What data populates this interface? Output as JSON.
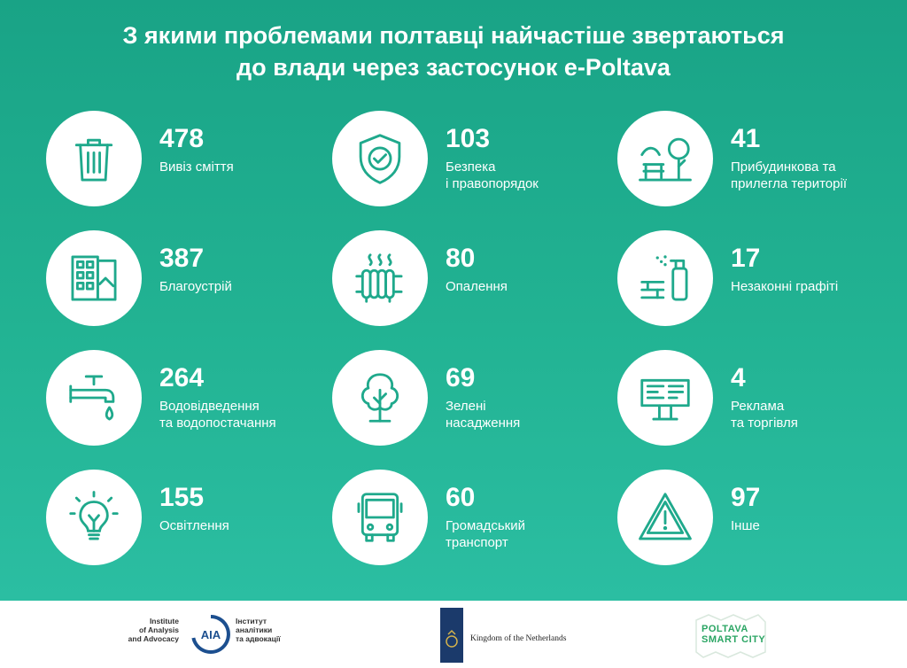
{
  "title": {
    "line1": "З якими проблемами полтавці найчастіше звертаються",
    "line2": "до влади через застосунок e-Poltava"
  },
  "colors": {
    "background": "#1fa98c",
    "icon": "#1fa98c",
    "text": "#ffffff"
  },
  "items": [
    {
      "icon": "trash-can-icon",
      "number": "478",
      "label1": "Вивіз сміття",
      "label2": ""
    },
    {
      "icon": "shield-check-icon",
      "number": "103",
      "label1": "Безпека",
      "label2": "і правопорядок"
    },
    {
      "icon": "park-bench-icon",
      "number": "41",
      "label1": "Прибудинкова та",
      "label2": "прилегла території"
    },
    {
      "icon": "building-icon",
      "number": "387",
      "label1": "Благоустрій",
      "label2": ""
    },
    {
      "icon": "radiator-icon",
      "number": "80",
      "label1": "Опалення",
      "label2": ""
    },
    {
      "icon": "spray-can-icon",
      "number": "17",
      "label1": "Незаконні графіті",
      "label2": ""
    },
    {
      "icon": "water-tap-icon",
      "number": "264",
      "label1": "Водовідведення",
      "label2": "та водопостачання"
    },
    {
      "icon": "tree-icon",
      "number": "69",
      "label1": "Зелені",
      "label2": "насадження"
    },
    {
      "icon": "billboard-icon",
      "number": "4",
      "label1": "Реклама",
      "label2": "та торгівля"
    },
    {
      "icon": "light-bulb-icon",
      "number": "155",
      "label1": "Освітлення",
      "label2": ""
    },
    {
      "icon": "bus-icon",
      "number": "60",
      "label1": "Громадський",
      "label2": "транспорт"
    },
    {
      "icon": "warning-triangle-icon",
      "number": "97",
      "label1": "Інше",
      "label2": ""
    }
  ],
  "footer": {
    "iaa_en": [
      "Institute",
      "of Analysis",
      "and Advocacy"
    ],
    "iaa_logo": "AIA",
    "iaa_ua": [
      "Інститут",
      "аналітики",
      "та адвокації"
    ],
    "netherlands": "Kingdom of the Netherlands",
    "poltava_line1": "POLTAVA",
    "poltava_line2": "SMART CITY"
  }
}
